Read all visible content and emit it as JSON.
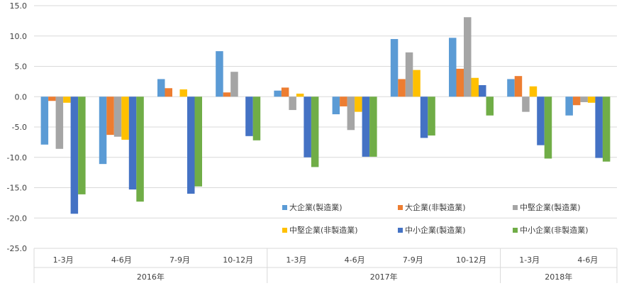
{
  "chart_data": {
    "type": "bar",
    "categories": [
      "1-3月",
      "4-6月",
      "7-9月",
      "10-12月",
      "1-3月",
      "4-6月",
      "7-9月",
      "10-12月",
      "1-3月",
      "4-6月"
    ],
    "groups": [
      {
        "label": "2016年",
        "count": 4
      },
      {
        "label": "2017年",
        "count": 4
      },
      {
        "label": "2018年",
        "count": 2
      }
    ],
    "series": [
      {
        "name": "大企業(製造業)",
        "color": "#5B9BD5",
        "values": [
          -7.9,
          -11.1,
          2.9,
          7.5,
          1.0,
          -2.9,
          9.5,
          9.7,
          2.9,
          -3.1
        ]
      },
      {
        "name": "大企業(非製造業)",
        "color": "#ED7D31",
        "values": [
          -0.7,
          -6.3,
          1.4,
          0.7,
          1.5,
          -1.6,
          2.9,
          4.6,
          3.4,
          -1.4
        ]
      },
      {
        "name": "中堅企業(製造業)",
        "color": "#A5A5A5",
        "values": [
          -8.6,
          -6.6,
          0.0,
          4.1,
          -2.2,
          -5.5,
          7.3,
          13.1,
          -2.5,
          -0.9
        ]
      },
      {
        "name": "中堅企業(非製造業)",
        "color": "#FFC000",
        "values": [
          -1.0,
          -7.1,
          1.2,
          0.0,
          0.5,
          -2.5,
          4.4,
          3.1,
          1.7,
          -1.0
        ]
      },
      {
        "name": "中小企業(製造業)",
        "color": "#4472C4",
        "values": [
          -19.3,
          -15.3,
          -16.0,
          -6.5,
          -10.0,
          -9.9,
          -6.8,
          1.9,
          -8.0,
          -10.1
        ]
      },
      {
        "name": "中小企業(非製造業)",
        "color": "#70AD47",
        "values": [
          -16.1,
          -17.3,
          -14.8,
          -7.2,
          -11.6,
          -9.9,
          -6.4,
          -3.1,
          -10.2,
          -10.7
        ]
      }
    ],
    "ylim": [
      -25.0,
      15.0
    ],
    "yticks": [
      "15.0",
      "10.0",
      "5.0",
      "0.0",
      "-5.0",
      "-10.0",
      "-15.0",
      "-20.0",
      "-25.0"
    ],
    "grid": true,
    "legend": "bottom-right-inside",
    "title": "",
    "xlabel": "",
    "ylabel": ""
  }
}
